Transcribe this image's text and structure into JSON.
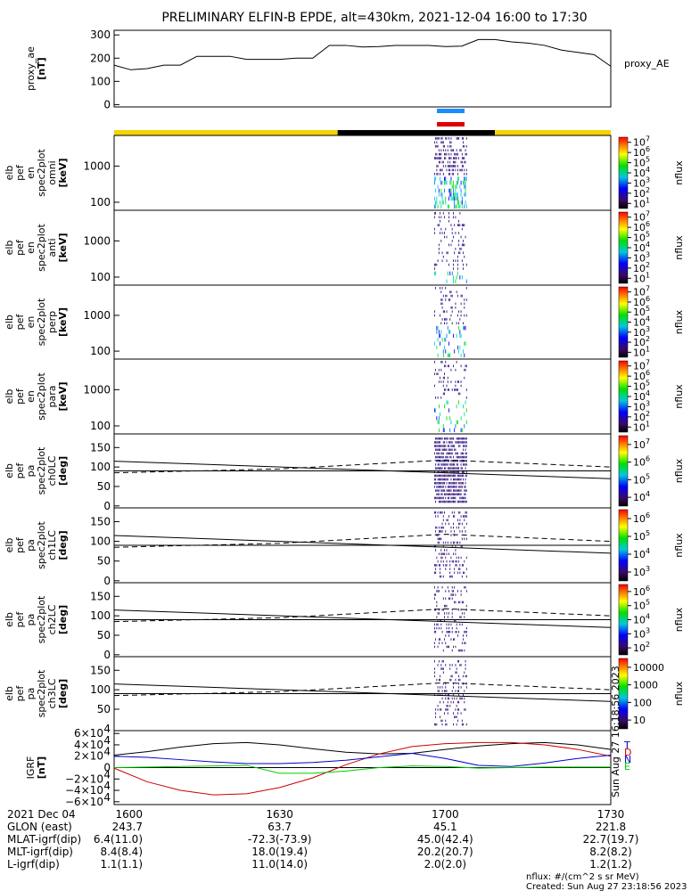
{
  "title": "PRELIMINARY ELFIN-B EPDE, alt=430km, 2021-12-04 16:00 to 17:30",
  "chart_data": [
    {
      "type": "line",
      "id": "proxy_ae",
      "ylabel_lines": [
        "proxy_ae",
        "[nT]"
      ],
      "legend": "proxy_AE",
      "yticks": [
        0,
        100,
        200,
        300
      ],
      "ylim": [
        -10,
        320
      ],
      "xlim": [
        0,
        90
      ],
      "x": [
        0,
        3,
        6,
        9,
        12,
        15,
        18,
        21,
        24,
        27,
        30,
        33,
        36,
        39,
        42,
        45,
        48,
        51,
        54,
        57,
        60,
        63,
        66,
        69,
        72,
        75,
        78,
        81,
        84,
        87,
        90
      ],
      "values": [
        170,
        150,
        155,
        170,
        170,
        208,
        208,
        208,
        195,
        195,
        195,
        200,
        200,
        255,
        255,
        248,
        250,
        255,
        255,
        255,
        250,
        252,
        280,
        280,
        270,
        265,
        255,
        235,
        225,
        215,
        165
      ]
    },
    {
      "type": "heatmap",
      "id": "omni",
      "ylabel_lines": [
        "elb",
        "pef",
        "en",
        "spec2plot",
        "omni",
        "[keV]"
      ],
      "yticks": [
        100,
        1000
      ],
      "ylim": [
        60,
        7000
      ],
      "log": true,
      "colorbar_label": "nflux",
      "colorbar_ticks": [
        1,
        2,
        3,
        4,
        5,
        6,
        7
      ]
    },
    {
      "type": "heatmap",
      "id": "anti",
      "ylabel_lines": [
        "elb",
        "pef",
        "en",
        "spec2plot",
        "anti",
        "[keV]"
      ],
      "yticks": [
        100,
        1000
      ],
      "ylim": [
        60,
        7000
      ],
      "log": true,
      "colorbar_label": "nflux",
      "colorbar_ticks": [
        1,
        2,
        3,
        4,
        5,
        6,
        7
      ]
    },
    {
      "type": "heatmap",
      "id": "perp",
      "ylabel_lines": [
        "elb",
        "pef",
        "en",
        "spec2plot",
        "perp",
        "[keV]"
      ],
      "yticks": [
        100,
        1000
      ],
      "ylim": [
        60,
        7000
      ],
      "log": true,
      "colorbar_label": "nflux",
      "colorbar_ticks": [
        1,
        2,
        3,
        4,
        5,
        6,
        7
      ]
    },
    {
      "type": "heatmap",
      "id": "para",
      "ylabel_lines": [
        "elb",
        "pef",
        "en",
        "spec2plot",
        "para",
        "[keV]"
      ],
      "yticks": [
        100,
        1000
      ],
      "ylim": [
        60,
        7000
      ],
      "log": true,
      "colorbar_label": "nflux",
      "colorbar_ticks": [
        1,
        2,
        3,
        4,
        5,
        6,
        7
      ]
    },
    {
      "type": "heatmap",
      "id": "ch0LC",
      "ylabel_lines": [
        "elb",
        "pef",
        "pa",
        "spec2plot",
        "ch0LC",
        "[deg]"
      ],
      "yticks": [
        0,
        50,
        100,
        150
      ],
      "ylim": [
        -5,
        185
      ],
      "log": false,
      "colorbar_label": "nflux",
      "colorbar_ticks": [
        4,
        5,
        6,
        7
      ]
    },
    {
      "type": "heatmap",
      "id": "ch1LC",
      "ylabel_lines": [
        "elb",
        "pef",
        "pa",
        "spec2plot",
        "ch1LC",
        "[deg]"
      ],
      "yticks": [
        0,
        50,
        100,
        150
      ],
      "ylim": [
        -5,
        185
      ],
      "log": false,
      "colorbar_label": "nflux",
      "colorbar_ticks": [
        3,
        4,
        5,
        6
      ]
    },
    {
      "type": "heatmap",
      "id": "ch2LC",
      "ylabel_lines": [
        "elb",
        "pef",
        "pa",
        "spec2plot",
        "ch2LC",
        "[deg]"
      ],
      "yticks": [
        0,
        50,
        100,
        150
      ],
      "ylim": [
        -5,
        185
      ],
      "log": false,
      "colorbar_label": "nflux",
      "colorbar_ticks": [
        2,
        3,
        4,
        5,
        6
      ]
    },
    {
      "type": "heatmap",
      "id": "ch3LC",
      "ylabel_lines": [
        "elb",
        "pef",
        "pa",
        "spec2plot",
        "ch3LC",
        "[deg]"
      ],
      "yticks": [
        50,
        100,
        150
      ],
      "ylim": [
        -5,
        185
      ],
      "log": false,
      "colorbar_label": "nflux",
      "colorbar_tick_labels": [
        "10",
        "100",
        "1000",
        "10000"
      ]
    },
    {
      "type": "line",
      "id": "igrf",
      "ylabel_lines": [
        "IGRF",
        "[nT]"
      ],
      "yticks_exp": [
        -6,
        -4,
        -2,
        0,
        2,
        4,
        6
      ],
      "ylim": [
        -65000,
        65000
      ],
      "xlim": [
        0,
        90
      ],
      "x": [
        0,
        6,
        12,
        18,
        24,
        30,
        36,
        42,
        48,
        54,
        60,
        66,
        72,
        78,
        84,
        90
      ],
      "series": [
        {
          "name": "T",
          "color": "#000000",
          "values": [
            22000,
            28000,
            36000,
            42000,
            44000,
            40000,
            33000,
            27000,
            24000,
            25000,
            32000,
            38000,
            42000,
            44000,
            40000,
            32000
          ]
        },
        {
          "name": "D",
          "color": "#cc0000",
          "values": [
            -1000,
            -25000,
            -40000,
            -48000,
            -46000,
            -35000,
            -18000,
            5000,
            24000,
            37000,
            42000,
            44000,
            44000,
            40000,
            32000,
            20000
          ]
        },
        {
          "name": "N",
          "color": "#0000cc",
          "values": [
            20000,
            18000,
            14000,
            10000,
            7000,
            7000,
            9000,
            13000,
            19000,
            25000,
            16000,
            4000,
            2000,
            8000,
            16000,
            22000
          ]
        },
        {
          "name": "E",
          "color": "#00cc00",
          "values": [
            0,
            1000,
            2000,
            3000,
            4000,
            -10000,
            -10000,
            -6000,
            0,
            3000,
            2000,
            -1000,
            0,
            1000,
            1000,
            1000
          ]
        }
      ]
    }
  ],
  "side_labels": {
    "T": "T",
    "D": "D",
    "N": "N",
    "E": "E"
  },
  "footer": {
    "rows": [
      [
        "2021 Dec 04",
        "1600",
        "1630",
        "1700",
        "1730"
      ],
      [
        "GLON (east)",
        "243.7",
        "63.7",
        "45.1",
        "221.8"
      ],
      [
        "MLAT-igrf(dip)",
        "6.4(11.0)",
        "-72.3(-73.9)",
        "45.0(42.4)",
        "22.7(19.7)"
      ],
      [
        "MLT-igrf(dip)",
        "8.4(8.4)",
        "18.0(19.4)",
        "20.2(20.7)",
        "8.2(8.2)"
      ],
      [
        "L-igrf(dip)",
        "1.1(1.1)",
        "11.0(14.0)",
        "2.0(2.0)",
        "1.2(1.2)"
      ]
    ],
    "units": "nflux: #/(cm^2 s sr MeV)",
    "created": "Created: Sun Aug 27 23:18:56 2023",
    "vertical_stamp": "Sun Aug 27 16:18:56 2023"
  },
  "colors": {
    "day": "#f5d400",
    "night": "#000000",
    "science_blue": "#1a8cff",
    "science_red": "#e00000"
  }
}
